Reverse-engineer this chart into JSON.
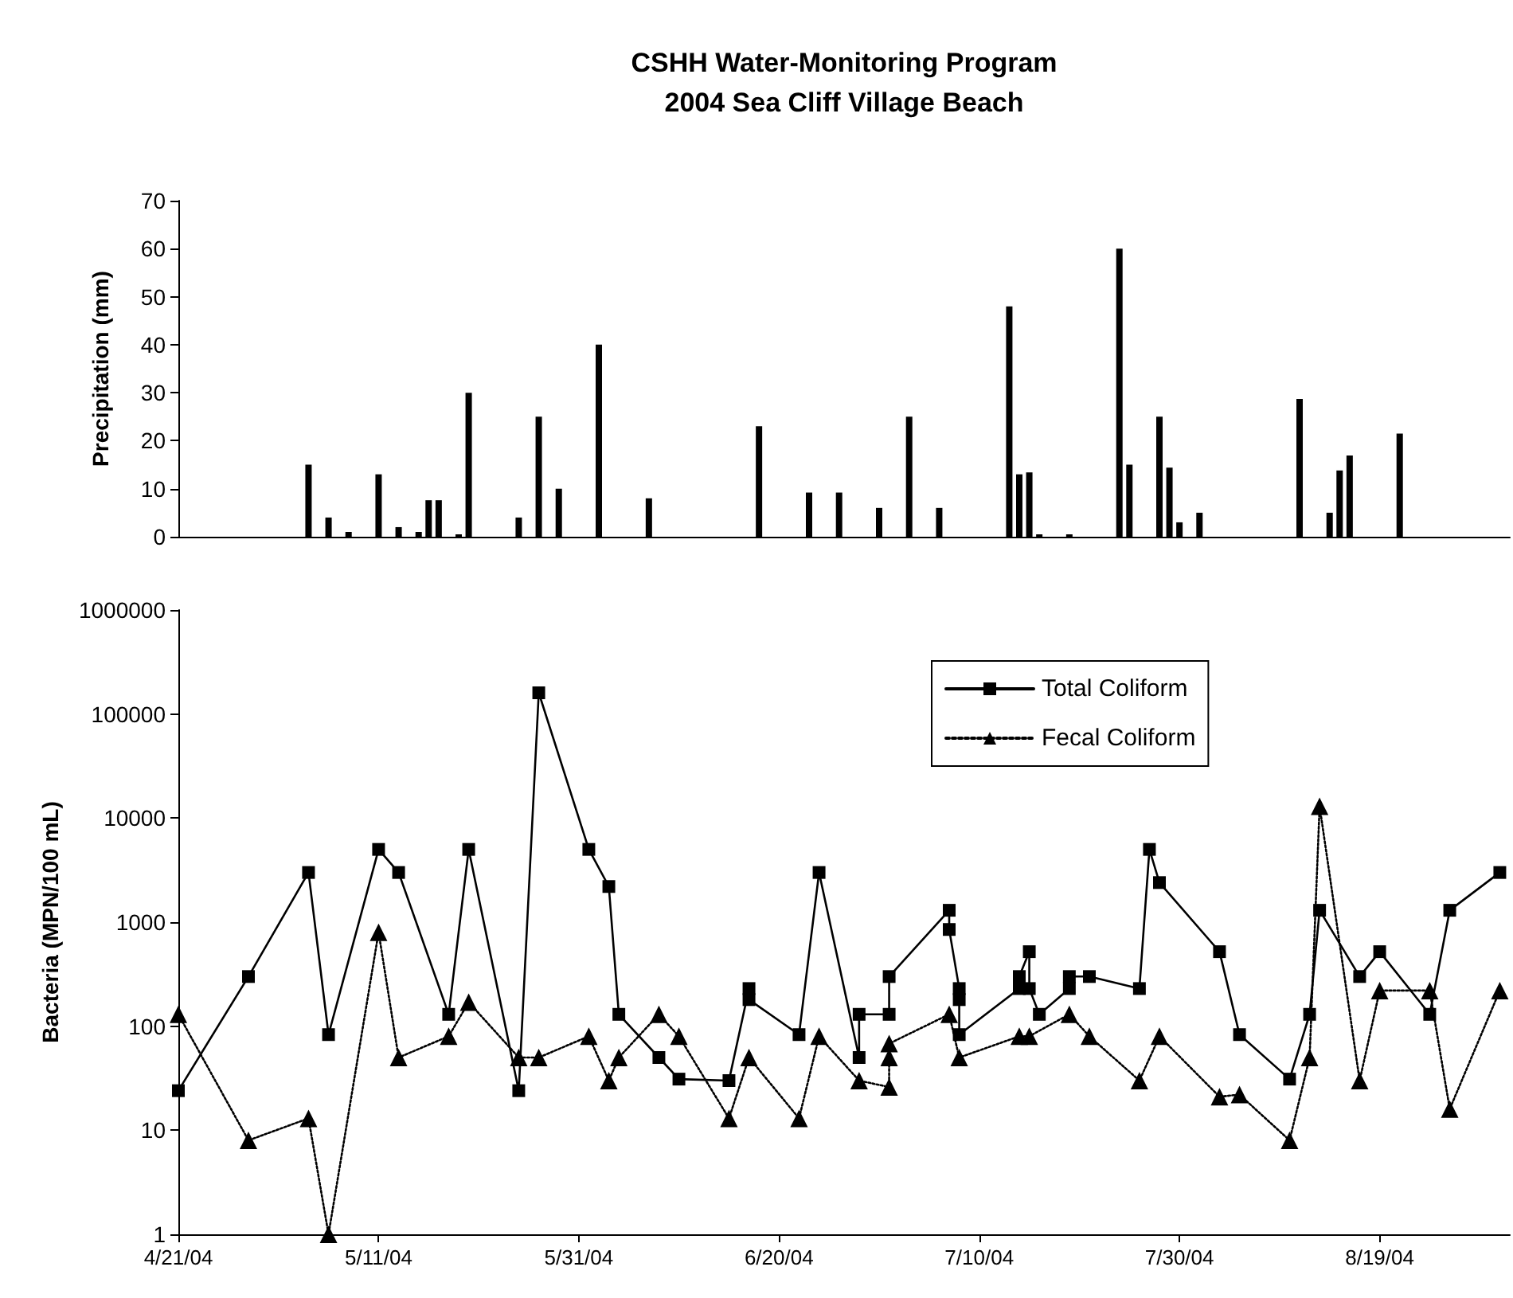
{
  "chart_data": [
    {
      "type": "bar",
      "title": "CSHH Water-Monitoring Program",
      "subtitle": "2004 Sea Cliff Village Beach",
      "ylabel": "Precipitation (mm)",
      "x": [
        "2004-05-04",
        "2004-05-06",
        "2004-05-08",
        "2004-05-11",
        "2004-05-13",
        "2004-05-15",
        "2004-05-16",
        "2004-05-17",
        "2004-05-19",
        "2004-05-20",
        "2004-05-25",
        "2004-05-27",
        "2004-05-29",
        "2004-06-02",
        "2004-06-07",
        "2004-06-18",
        "2004-06-23",
        "2004-06-26",
        "2004-06-30",
        "2004-07-03",
        "2004-07-06",
        "2004-07-13",
        "2004-07-14",
        "2004-07-15",
        "2004-07-16",
        "2004-07-19",
        "2004-07-24",
        "2004-07-25",
        "2004-07-28",
        "2004-07-29",
        "2004-07-30",
        "2004-08-01",
        "2004-08-11",
        "2004-08-14",
        "2004-08-15",
        "2004-08-16",
        "2004-08-21"
      ],
      "values": [
        15,
        4,
        1,
        13,
        2,
        1,
        7.6,
        7.6,
        0.5,
        30,
        4,
        25,
        10,
        40,
        8,
        23,
        9.2,
        9.2,
        6,
        25,
        6,
        48,
        13,
        13.4,
        0.5,
        0.5,
        60,
        15,
        25,
        14.4,
        3,
        5,
        28.7,
        5,
        13.8,
        16.9,
        21.5
      ],
      "color": "#000000",
      "xlim": [
        "2004-04-21",
        "2004-09-01"
      ],
      "ylim": [
        0,
        70
      ],
      "yticks": [
        0,
        10,
        20,
        30,
        40,
        50,
        60,
        70
      ],
      "tick_labels": "y",
      "grid": false
    },
    {
      "type": "line",
      "ylabel": "Bacteria (MPN/100 mL)",
      "log": true,
      "legend": "top right",
      "grid": false,
      "xlim": [
        "2004-04-21",
        "2004-09-01"
      ],
      "xticks": [
        {
          "value": "2004-04-21",
          "label": "4/21/04"
        },
        {
          "value": "2004-05-11",
          "label": "5/11/04"
        },
        {
          "value": "2004-05-31",
          "label": "5/31/04"
        },
        {
          "value": "2004-06-20",
          "label": "6/20/04"
        },
        {
          "value": "2004-07-10",
          "label": "7/10/04"
        },
        {
          "value": "2004-07-30",
          "label": "7/30/04"
        },
        {
          "value": "2004-08-19",
          "label": "8/19/04"
        }
      ],
      "ylim": [
        1,
        1000000
      ],
      "yticks": [
        1,
        10,
        100,
        1000,
        10000,
        100000,
        1000000
      ],
      "series": [
        {
          "name": "Total Coliform",
          "color": "#000000",
          "marker": "square",
          "line_style": "solid",
          "x": [
            "2004-04-21",
            "2004-04-28",
            "2004-05-04",
            "2004-05-06",
            "2004-05-11",
            "2004-05-13",
            "2004-05-18",
            "2004-05-20",
            "2004-05-25",
            "2004-05-27",
            "2004-06-01",
            "2004-06-03",
            "2004-06-04",
            "2004-06-08",
            "2004-06-10",
            "2004-06-15",
            "2004-06-17",
            "2004-06-17",
            "2004-06-22",
            "2004-06-24",
            "2004-06-28",
            "2004-06-28",
            "2004-07-01",
            "2004-07-01",
            "2004-07-07",
            "2004-07-07",
            "2004-07-08",
            "2004-07-08",
            "2004-07-08",
            "2004-07-14",
            "2004-07-14",
            "2004-07-15",
            "2004-07-15",
            "2004-07-16",
            "2004-07-19",
            "2004-07-19",
            "2004-07-21",
            "2004-07-26",
            "2004-07-27",
            "2004-07-28",
            "2004-08-03",
            "2004-08-05",
            "2004-08-10",
            "2004-08-12",
            "2004-08-13",
            "2004-08-17",
            "2004-08-19",
            "2004-08-24",
            "2004-08-26",
            "2004-08-31"
          ],
          "values": [
            24,
            300,
            3000,
            83,
            5000,
            3000,
            130,
            5000,
            24,
            160000,
            5000,
            2200,
            130,
            50,
            31,
            30,
            230,
            180,
            83,
            3000,
            50,
            130,
            130,
            300,
            1300,
            850,
            230,
            180,
            83,
            230,
            300,
            520,
            230,
            130,
            230,
            300,
            300,
            230,
            5000,
            2400,
            520,
            83,
            31,
            130,
            1300,
            300,
            520,
            130,
            1300,
            3000
          ]
        },
        {
          "name": "Fecal Coliform",
          "color": "#000000",
          "marker": "triangle",
          "line_style": "dotted",
          "x": [
            "2004-04-21",
            "2004-04-28",
            "2004-05-04",
            "2004-05-06",
            "2004-05-11",
            "2004-05-13",
            "2004-05-18",
            "2004-05-20",
            "2004-05-25",
            "2004-05-27",
            "2004-06-01",
            "2004-06-03",
            "2004-06-04",
            "2004-06-08",
            "2004-06-10",
            "2004-06-15",
            "2004-06-17",
            "2004-06-22",
            "2004-06-24",
            "2004-06-28",
            "2004-07-01",
            "2004-07-01",
            "2004-07-01",
            "2004-07-07",
            "2004-07-08",
            "2004-07-14",
            "2004-07-15",
            "2004-07-19",
            "2004-07-21",
            "2004-07-26",
            "2004-07-28",
            "2004-08-03",
            "2004-08-05",
            "2004-08-10",
            "2004-08-12",
            "2004-08-13",
            "2004-08-17",
            "2004-08-19",
            "2004-08-24",
            "2004-08-26",
            "2004-08-31"
          ],
          "values": [
            130,
            8,
            13,
            1,
            800,
            50,
            80,
            170,
            50,
            50,
            80,
            30,
            50,
            130,
            80,
            13,
            50,
            13,
            80,
            30,
            26,
            50,
            68,
            130,
            50,
            80,
            80,
            130,
            80,
            30,
            80,
            21,
            22,
            8,
            50,
            13000,
            30,
            220,
            220,
            16,
            220
          ]
        }
      ]
    }
  ]
}
